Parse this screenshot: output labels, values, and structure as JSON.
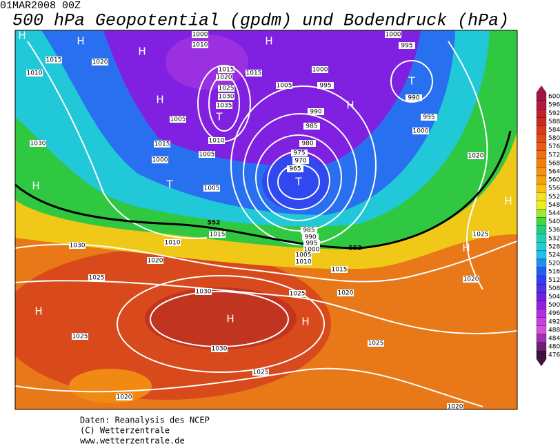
{
  "header": {
    "date": "01MAR2008 00Z",
    "title": "500 hPa Geopotential (gpdm) und Bodendruck (hPa)"
  },
  "map": {
    "isobar_labels": [
      1015,
      1010,
      1020,
      1030,
      1005,
      1015,
      1000,
      1005,
      1010,
      1015,
      1020,
      1025,
      1030,
      1035,
      1015,
      1000,
      995,
      1005,
      990,
      985,
      980,
      975,
      970,
      965,
      1005,
      1015,
      1010,
      1030,
      1020,
      1025,
      985,
      990,
      995,
      1000,
      1005,
      1010,
      1015,
      1025,
      1020,
      1030,
      1030,
      1025,
      1025,
      1020,
      1025,
      1020,
      995,
      990,
      995,
      1000,
      1020,
      1025,
      1020,
      1000,
      1000,
      1010
    ],
    "geopotential_labels": [
      552,
      552
    ],
    "pressure_centers": [
      "H",
      "H",
      "H",
      "H",
      "H",
      "H",
      "T",
      "T",
      "H",
      "T",
      "T",
      "H",
      "H",
      "H",
      "H",
      "H"
    ]
  },
  "colorbar": {
    "ticks": [
      600,
      596,
      592,
      588,
      584,
      580,
      576,
      572,
      568,
      564,
      560,
      556,
      552,
      548,
      544,
      540,
      536,
      532,
      528,
      524,
      520,
      516,
      512,
      508,
      504,
      500,
      496,
      492,
      488,
      484,
      480,
      476
    ],
    "colors": [
      "#a0144a",
      "#b01a3c",
      "#c0202e",
      "#d02820",
      "#d83a1c",
      "#e04a18",
      "#e85c14",
      "#ec7012",
      "#f08010",
      "#f4920e",
      "#f6a40c",
      "#f8c010",
      "#f8e020",
      "#e8f020",
      "#a0e830",
      "#40d840",
      "#20d080",
      "#20d0b0",
      "#20d0d8",
      "#20c0f0",
      "#2090f0",
      "#2060f0",
      "#3040f0",
      "#5030e8",
      "#7020e0",
      "#9020e0",
      "#b030e0",
      "#c840e0",
      "#d850d8",
      "#a030b0",
      "#702070",
      "#401040"
    ]
  },
  "footer": {
    "lines": [
      "Daten: Reanalysis des NCEP",
      "(C) Wetterzentrale",
      "www.wetterzentrale.de"
    ]
  }
}
